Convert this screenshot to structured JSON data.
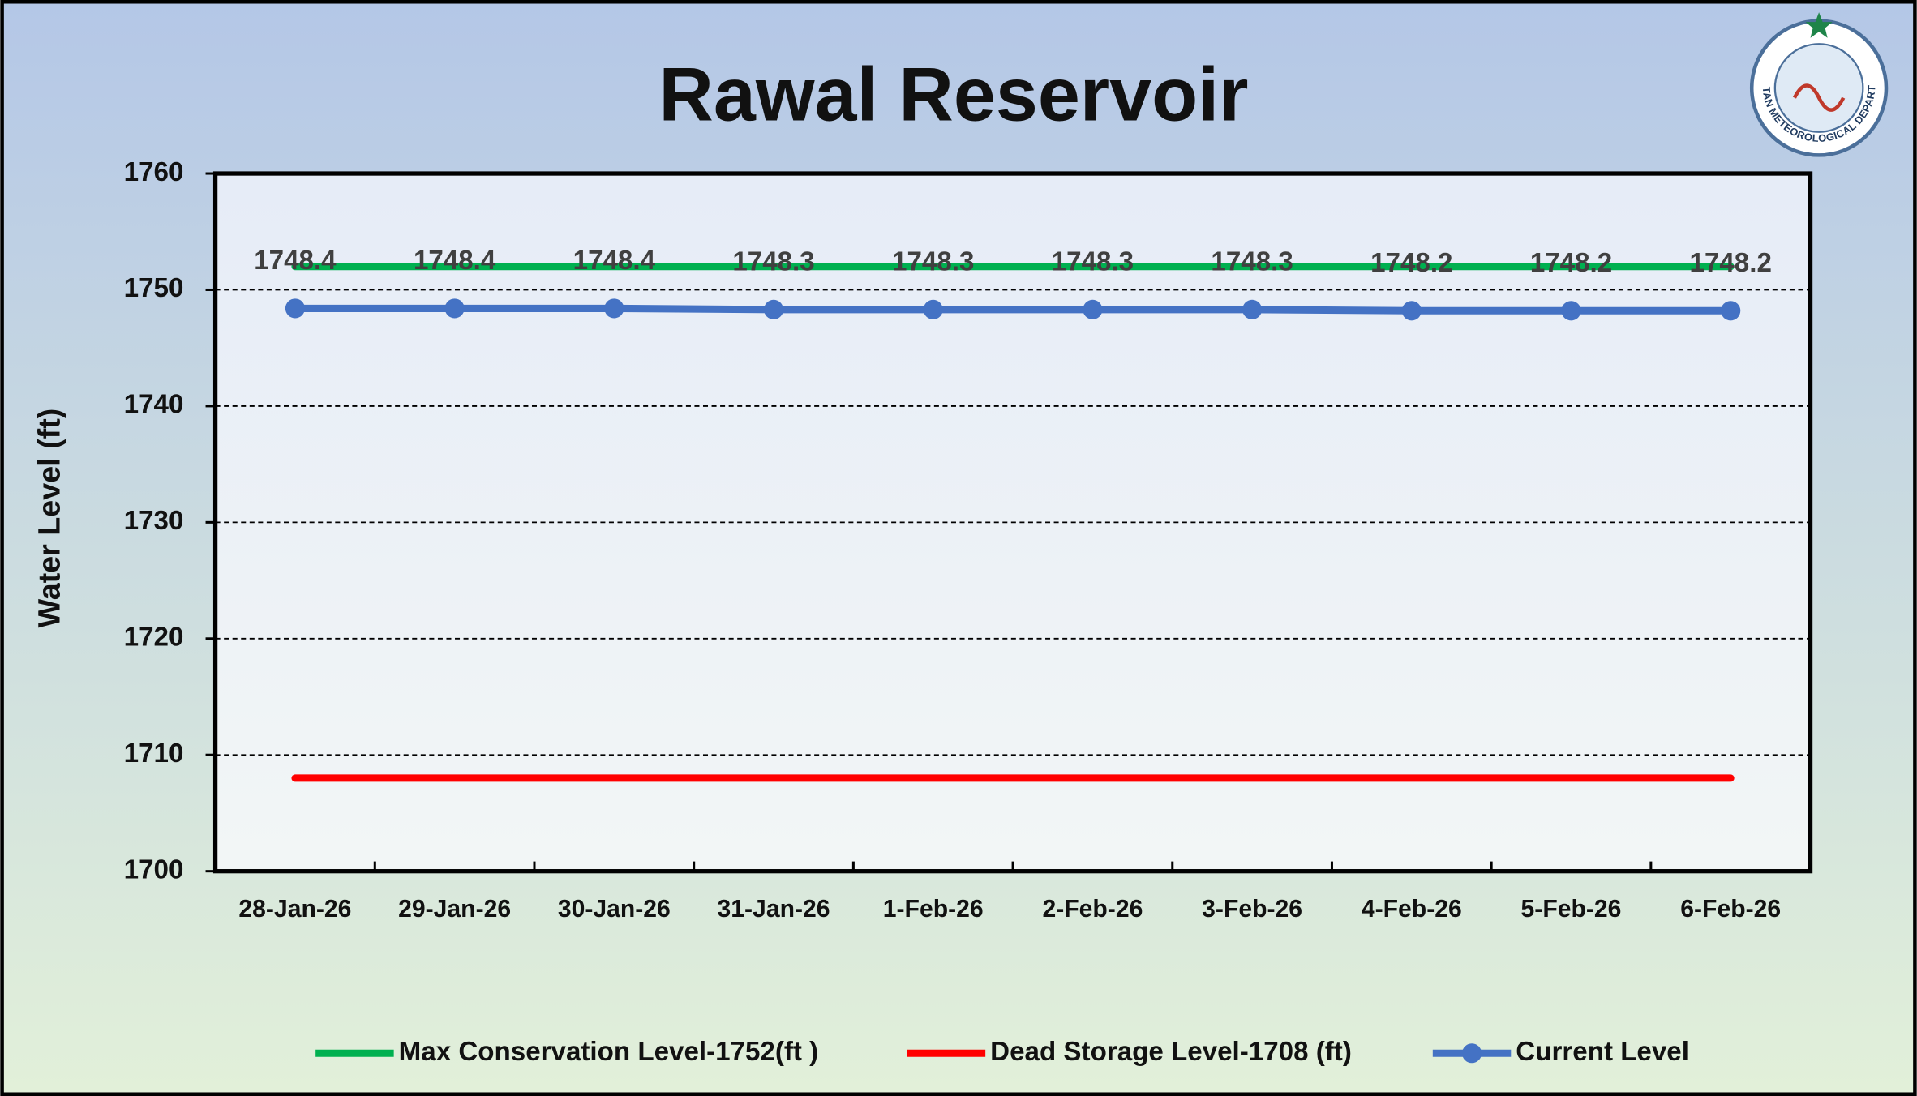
{
  "chart_data": {
    "type": "line",
    "title": "Rawal Reservoir",
    "ylabel": "Water Level (ft)",
    "logo": "PAKISTAN METEOROLOGICAL DEPARTMENT",
    "categories": [
      "28-Jan-26",
      "29-Jan-26",
      "30-Jan-26",
      "31-Jan-26",
      "1-Feb-26",
      "2-Feb-26",
      "3-Feb-26",
      "4-Feb-26",
      "5-Feb-26",
      "6-Feb-26"
    ],
    "series": [
      {
        "name": "Max Conservation Level-1752(ft )",
        "color": "#00b050",
        "values": [
          1752,
          1752,
          1752,
          1752,
          1752,
          1752,
          1752,
          1752,
          1752,
          1752
        ]
      },
      {
        "name": "Dead Storage Level-1708 (ft)",
        "color": "#ff0000",
        "values": [
          1708,
          1708,
          1708,
          1708,
          1708,
          1708,
          1708,
          1708,
          1708,
          1708
        ]
      },
      {
        "name": "Current Level",
        "color": "#4472c4",
        "markers": true,
        "data_labels": true,
        "values": [
          1748.4,
          1748.4,
          1748.4,
          1748.3,
          1748.3,
          1748.3,
          1748.3,
          1748.2,
          1748.2,
          1748.2
        ]
      }
    ],
    "ylim": [
      1700,
      1760
    ],
    "yticks": [
      1700,
      1710,
      1720,
      1730,
      1740,
      1750,
      1760
    ],
    "grid": true,
    "legend": "bottom"
  }
}
